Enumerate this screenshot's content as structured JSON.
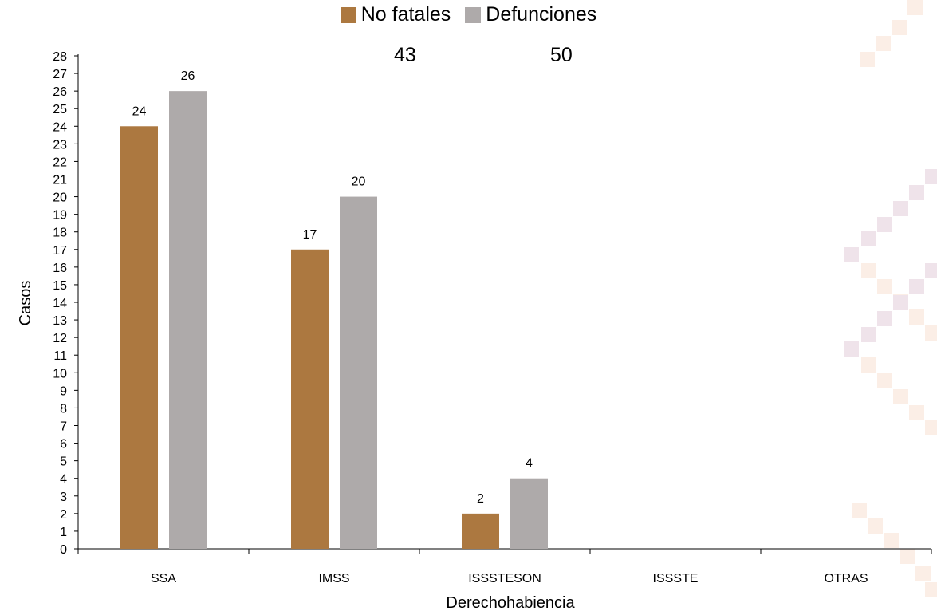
{
  "chart_data": {
    "type": "bar",
    "categories": [
      "SSA",
      "IMSS",
      "ISSSTESON",
      "ISSSTE",
      "OTRAS"
    ],
    "series": [
      {
        "name": "No fatales",
        "values": [
          24,
          17,
          2,
          0,
          0
        ],
        "color": "#ac7840"
      },
      {
        "name": "Defunciones",
        "values": [
          26,
          20,
          4,
          0,
          0
        ],
        "color": "#aeaaaa"
      }
    ],
    "data_labels": [
      [
        24,
        17,
        2,
        null,
        null
      ],
      [
        26,
        20,
        4,
        null,
        null
      ]
    ],
    "totals": [
      "43",
      "50"
    ],
    "xlabel": "Derechohabiencia",
    "ylabel": "Casos",
    "ylim": [
      0,
      28
    ],
    "y_step": 1,
    "grid": false,
    "legend_position": "top-center"
  },
  "decoration": {
    "pattern_colors": [
      "#fbeee6",
      "#efe3ea"
    ]
  }
}
